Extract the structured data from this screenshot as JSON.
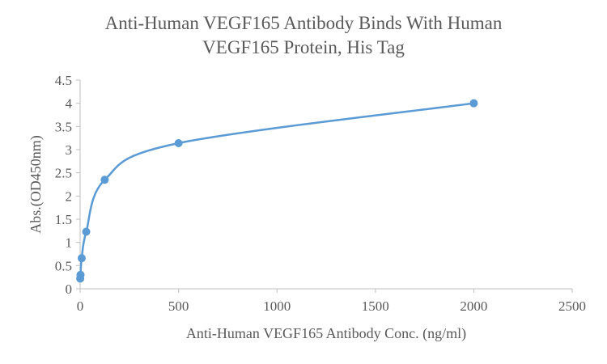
{
  "chart_data": {
    "type": "scatter",
    "title_line1": "Anti-Human VEGF165 Antibody Binds With Human",
    "title_line2": "VEGF165 Protein, His Tag",
    "xlabel": "Anti-Human VEGF165 Antibody Conc. (ng/ml)",
    "ylabel": "Abs.(OD450nm)",
    "xlim": [
      0,
      2500
    ],
    "ylim": [
      0,
      4.5
    ],
    "x_ticks": [
      "0",
      "500",
      "1000",
      "1500",
      "2000",
      "2500"
    ],
    "y_ticks": [
      "0",
      "0.5",
      "1",
      "1.5",
      "2",
      "2.5",
      "3",
      "3.5",
      "4",
      "4.5"
    ],
    "grid": false,
    "smooth_line": true,
    "series": [
      {
        "color": "#5b9bd5",
        "points": [
          {
            "x": 0.5,
            "y": 0.22
          },
          {
            "x": 2,
            "y": 0.3
          },
          {
            "x": 8,
            "y": 0.66
          },
          {
            "x": 31,
            "y": 1.23
          },
          {
            "x": 125,
            "y": 2.35
          },
          {
            "x": 500,
            "y": 3.14
          },
          {
            "x": 2000,
            "y": 4.0
          }
        ]
      }
    ]
  }
}
